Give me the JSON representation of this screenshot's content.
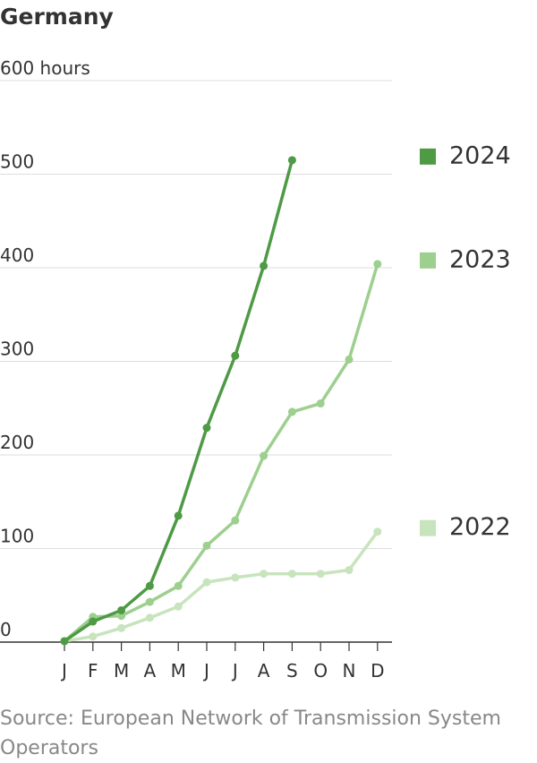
{
  "chart_data": {
    "type": "line",
    "title": "Germany",
    "source": "Source: European Network of Transmission System Operators",
    "categories": [
      "J",
      "F",
      "M",
      "A",
      "M",
      "J",
      "J",
      "A",
      "S",
      "O",
      "N",
      "D"
    ],
    "series": [
      {
        "name": "2024",
        "color": "#4e9a45",
        "values": [
          1,
          22,
          34,
          60,
          135,
          229,
          306,
          402,
          515,
          null,
          null,
          null
        ]
      },
      {
        "name": "2023",
        "color": "#9dcf8e",
        "values": [
          1,
          27,
          28,
          43,
          60,
          103,
          130,
          199,
          246,
          255,
          302,
          404
        ]
      },
      {
        "name": "2022",
        "color": "#c7e4bd",
        "values": [
          1,
          6,
          15,
          26,
          38,
          64,
          69,
          73,
          73,
          73,
          77,
          118
        ]
      }
    ],
    "ylim": [
      0,
      600
    ],
    "yticks": [
      0,
      100,
      200,
      300,
      400,
      500,
      {
        "value": 600,
        "label": "600 hours"
      }
    ],
    "grid": true
  }
}
